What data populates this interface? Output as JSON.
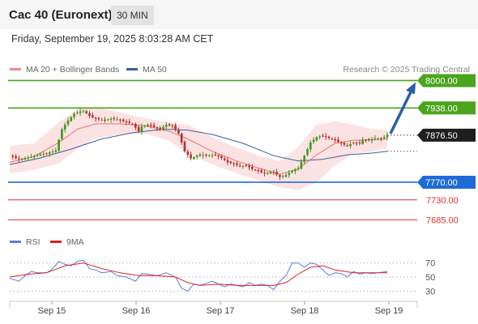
{
  "header": {
    "title": "Cac 40 (Euronext)",
    "timeframe": "30 MIN",
    "datetime": "Friday, September 19, 2025 8:03:28 AM CET"
  },
  "legend": {
    "main": [
      {
        "label": "MA 20 + Bollinger Bands",
        "color": "#f28b8b"
      },
      {
        "label": "MA 50",
        "color": "#3a5fa0"
      }
    ],
    "rsi": [
      {
        "label": "RSI",
        "color": "#5b7fd6"
      },
      {
        "label": "9MA",
        "color": "#e02020"
      }
    ]
  },
  "copyright": "Research © 2025 Trading Central",
  "chart_data": {
    "type": "candlestick",
    "y_range": [
      7660,
      8010
    ],
    "current_price": "7876.50",
    "levels": [
      {
        "value": 8000.0,
        "label": "8000.00",
        "kind": "resistance",
        "color": "#4aa51c"
      },
      {
        "value": 7938.0,
        "label": "7938.00",
        "kind": "resistance",
        "color": "#4aa51c"
      },
      {
        "value": 7770.0,
        "label": "7770.00",
        "kind": "pivot",
        "color": "#1f6bd6"
      },
      {
        "value": 7730.0,
        "label": "7730.00",
        "kind": "support",
        "color": "#e03030"
      },
      {
        "value": 7685.0,
        "label": "7685.00",
        "kind": "support",
        "color": "#e03030"
      }
    ],
    "x_labels": [
      "Sep 15",
      "Sep 16",
      "Sep 17",
      "Sep 18",
      "Sep 19"
    ],
    "close_path": [
      [
        0,
        7830
      ],
      [
        3,
        7822
      ],
      [
        6,
        7826
      ],
      [
        9,
        7832
      ],
      [
        12,
        7835
      ],
      [
        14,
        7840
      ],
      [
        15,
        7842
      ],
      [
        17,
        7890
      ],
      [
        19,
        7910
      ],
      [
        21,
        7925
      ],
      [
        23,
        7930
      ],
      [
        24,
        7932
      ],
      [
        26,
        7920
      ],
      [
        28,
        7914
      ],
      [
        31,
        7910
      ],
      [
        33,
        7914
      ],
      [
        35,
        7912
      ],
      [
        37,
        7908
      ],
      [
        40,
        7902
      ],
      [
        42,
        7885
      ],
      [
        43,
        7896
      ],
      [
        45,
        7900
      ],
      [
        47,
        7895
      ],
      [
        49,
        7890
      ],
      [
        51,
        7900
      ],
      [
        53,
        7898
      ],
      [
        55,
        7880
      ],
      [
        57,
        7840
      ],
      [
        59,
        7824
      ],
      [
        61,
        7830
      ],
      [
        63,
        7832
      ],
      [
        65,
        7830
      ],
      [
        67,
        7832
      ],
      [
        69,
        7825
      ],
      [
        71,
        7815
      ],
      [
        73,
        7812
      ],
      [
        75,
        7806
      ],
      [
        77,
        7808
      ],
      [
        79,
        7800
      ],
      [
        81,
        7795
      ],
      [
        83,
        7790
      ],
      [
        85,
        7793
      ],
      [
        86,
        7792
      ],
      [
        88,
        7782
      ],
      [
        90,
        7786
      ],
      [
        92,
        7796
      ],
      [
        94,
        7802
      ],
      [
        96,
        7830
      ],
      [
        98,
        7860
      ],
      [
        100,
        7872
      ],
      [
        102,
        7875
      ],
      [
        104,
        7870
      ],
      [
        106,
        7865
      ],
      [
        108,
        7858
      ],
      [
        110,
        7852
      ],
      [
        112,
        7860
      ],
      [
        114,
        7858
      ],
      [
        115,
        7866
      ],
      [
        117,
        7865
      ],
      [
        119,
        7870
      ],
      [
        121,
        7868
      ],
      [
        123,
        7876.5
      ]
    ],
    "ma20_path": [
      [
        0,
        7815
      ],
      [
        8,
        7828
      ],
      [
        16,
        7860
      ],
      [
        22,
        7890
      ],
      [
        28,
        7902
      ],
      [
        36,
        7902
      ],
      [
        44,
        7898
      ],
      [
        52,
        7885
      ],
      [
        58,
        7868
      ],
      [
        66,
        7840
      ],
      [
        74,
        7818
      ],
      [
        82,
        7800
      ],
      [
        88,
        7788
      ],
      [
        94,
        7800
      ],
      [
        100,
        7832
      ],
      [
        106,
        7858
      ],
      [
        112,
        7865
      ],
      [
        118,
        7866
      ],
      [
        123,
        7868
      ]
    ],
    "ma50_path": [
      [
        0,
        7810
      ],
      [
        10,
        7825
      ],
      [
        20,
        7845
      ],
      [
        30,
        7868
      ],
      [
        40,
        7882
      ],
      [
        50,
        7890
      ],
      [
        58,
        7888
      ],
      [
        66,
        7878
      ],
      [
        76,
        7858
      ],
      [
        86,
        7830
      ],
      [
        94,
        7818
      ],
      [
        102,
        7822
      ],
      [
        110,
        7832
      ],
      [
        118,
        7836
      ],
      [
        123,
        7840
      ]
    ],
    "bb_upper_path": [
      [
        0,
        7852
      ],
      [
        8,
        7858
      ],
      [
        16,
        7905
      ],
      [
        22,
        7935
      ],
      [
        28,
        7940
      ],
      [
        36,
        7928
      ],
      [
        44,
        7915
      ],
      [
        52,
        7905
      ],
      [
        58,
        7900
      ],
      [
        66,
        7872
      ],
      [
        74,
        7848
      ],
      [
        82,
        7828
      ],
      [
        88,
        7818
      ],
      [
        94,
        7850
      ],
      [
        100,
        7900
      ],
      [
        106,
        7908
      ],
      [
        112,
        7900
      ],
      [
        118,
        7890
      ],
      [
        123,
        7888
      ]
    ],
    "bb_lower_path": [
      [
        0,
        7790
      ],
      [
        8,
        7798
      ],
      [
        16,
        7812
      ],
      [
        22,
        7845
      ],
      [
        28,
        7870
      ],
      [
        36,
        7878
      ],
      [
        44,
        7880
      ],
      [
        52,
        7864
      ],
      [
        58,
        7835
      ],
      [
        66,
        7810
      ],
      [
        74,
        7790
      ],
      [
        82,
        7772
      ],
      [
        88,
        7758
      ],
      [
        94,
        7752
      ],
      [
        100,
        7770
      ],
      [
        106,
        7808
      ],
      [
        112,
        7835
      ],
      [
        118,
        7840
      ],
      [
        123,
        7846
      ]
    ],
    "rsi": {
      "y_range": [
        20,
        80
      ],
      "ticks": [
        "70",
        "50",
        "30"
      ],
      "tick_values": [
        70,
        50,
        30
      ],
      "rsi_path": [
        [
          0,
          48
        ],
        [
          3,
          44
        ],
        [
          5,
          52
        ],
        [
          7,
          58
        ],
        [
          9,
          56
        ],
        [
          12,
          56
        ],
        [
          14,
          62
        ],
        [
          16,
          72
        ],
        [
          18,
          68
        ],
        [
          20,
          66
        ],
        [
          22,
          72
        ],
        [
          24,
          74
        ],
        [
          26,
          62
        ],
        [
          28,
          60
        ],
        [
          30,
          56
        ],
        [
          33,
          58
        ],
        [
          35,
          52
        ],
        [
          38,
          50
        ],
        [
          41,
          44
        ],
        [
          43,
          55
        ],
        [
          45,
          54
        ],
        [
          48,
          52
        ],
        [
          51,
          56
        ],
        [
          54,
          50
        ],
        [
          56,
          34
        ],
        [
          58,
          30
        ],
        [
          60,
          40
        ],
        [
          62,
          38
        ],
        [
          64,
          41
        ],
        [
          66,
          44
        ],
        [
          68,
          40
        ],
        [
          70,
          36
        ],
        [
          72,
          40
        ],
        [
          74,
          38
        ],
        [
          76,
          36
        ],
        [
          78,
          42
        ],
        [
          80,
          38
        ],
        [
          82,
          40
        ],
        [
          84,
          38
        ],
        [
          86,
          32
        ],
        [
          88,
          44
        ],
        [
          90,
          52
        ],
        [
          92,
          70
        ],
        [
          94,
          70
        ],
        [
          96,
          64
        ],
        [
          98,
          70
        ],
        [
          100,
          68
        ],
        [
          102,
          60
        ],
        [
          104,
          52
        ],
        [
          106,
          56
        ],
        [
          108,
          55
        ],
        [
          110,
          50
        ],
        [
          112,
          58
        ],
        [
          114,
          54
        ],
        [
          116,
          56
        ],
        [
          118,
          55
        ],
        [
          120,
          56
        ],
        [
          123,
          58
        ]
      ],
      "ma_path": [
        [
          0,
          50
        ],
        [
          6,
          54
        ],
        [
          12,
          56
        ],
        [
          18,
          66
        ],
        [
          24,
          70
        ],
        [
          30,
          62
        ],
        [
          36,
          56
        ],
        [
          42,
          52
        ],
        [
          48,
          52
        ],
        [
          54,
          50
        ],
        [
          58,
          42
        ],
        [
          62,
          38
        ],
        [
          68,
          40
        ],
        [
          74,
          38
        ],
        [
          80,
          38
        ],
        [
          86,
          38
        ],
        [
          90,
          42
        ],
        [
          94,
          54
        ],
        [
          98,
          64
        ],
        [
          102,
          66
        ],
        [
          106,
          60
        ],
        [
          112,
          56
        ],
        [
          118,
          56
        ],
        [
          123,
          56
        ]
      ]
    }
  }
}
